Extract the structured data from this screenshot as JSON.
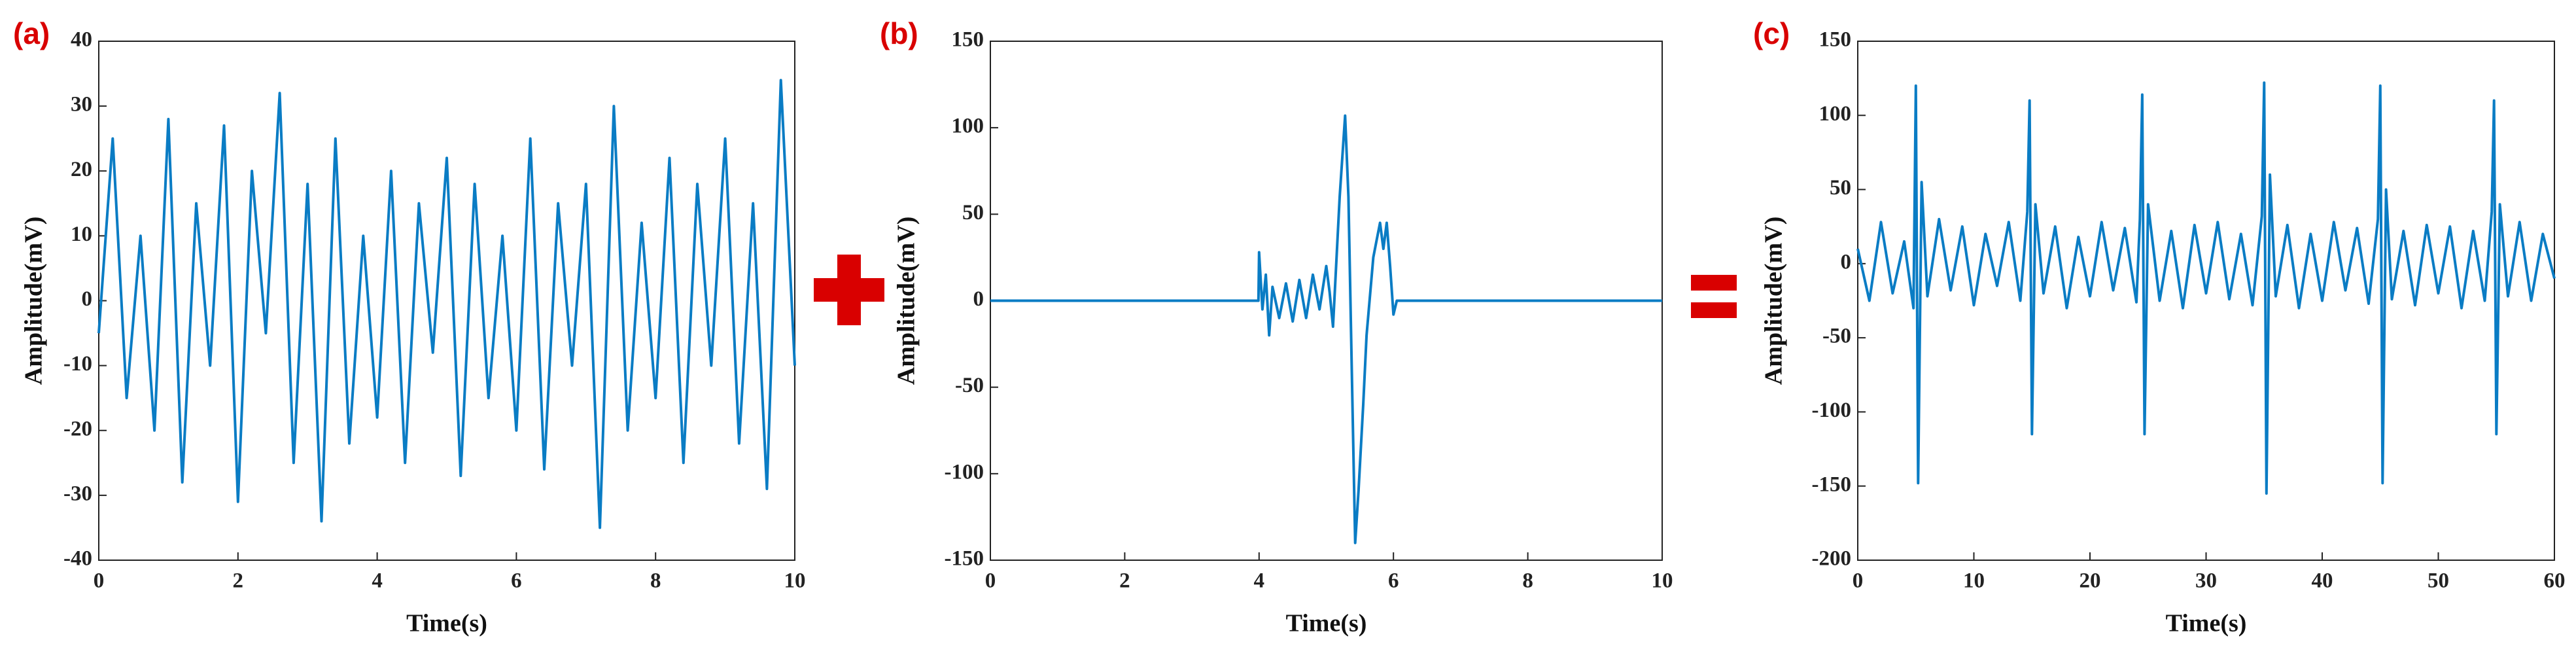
{
  "chart_data": [
    {
      "type": "line",
      "panel_label": "(a)",
      "xlabel": "Time(s)",
      "ylabel": "Amplitude(mV)",
      "xlim": [
        0,
        10
      ],
      "ylim": [
        -40,
        40
      ],
      "xticks": [
        0,
        2,
        4,
        6,
        8,
        10
      ],
      "yticks": [
        -40,
        -30,
        -20,
        -10,
        0,
        10,
        20,
        30,
        40
      ],
      "color": "#0a7cc4",
      "x": [
        0,
        0.2,
        0.4,
        0.6,
        0.8,
        1,
        1.2,
        1.4,
        1.6,
        1.8,
        2,
        2.2,
        2.4,
        2.6,
        2.8,
        3,
        3.2,
        3.4,
        3.6,
        3.8,
        4,
        4.2,
        4.4,
        4.6,
        4.8,
        5,
        5.2,
        5.4,
        5.6,
        5.8,
        6,
        6.2,
        6.4,
        6.6,
        6.8,
        7,
        7.2,
        7.4,
        7.6,
        7.8,
        8,
        8.2,
        8.4,
        8.6,
        8.8,
        9,
        9.2,
        9.4,
        9.6,
        9.8,
        10
      ],
      "values": [
        -5,
        25,
        -15,
        10,
        -20,
        28,
        -28,
        15,
        -10,
        27,
        -31,
        20,
        -5,
        32,
        -25,
        18,
        -34,
        25,
        -22,
        10,
        -18,
        20,
        -25,
        15,
        -8,
        22,
        -27,
        18,
        -15,
        10,
        -20,
        25,
        -26,
        15,
        -10,
        18,
        -35,
        30,
        -20,
        12,
        -15,
        22,
        -25,
        18,
        -10,
        25,
        -22,
        15,
        -29,
        34,
        -10
      ]
    },
    {
      "type": "line",
      "panel_label": "(b)",
      "xlabel": "Time(s)",
      "ylabel": "Amplitude(mV)",
      "xlim": [
        0,
        10
      ],
      "ylim": [
        -150,
        150
      ],
      "xticks": [
        0,
        2,
        4,
        6,
        8,
        10
      ],
      "yticks": [
        -150,
        -100,
        -50,
        0,
        50,
        100,
        150
      ],
      "color": "#0a7cc4",
      "x": [
        0,
        3.99,
        4,
        4.05,
        4.1,
        4.15,
        4.2,
        4.3,
        4.4,
        4.5,
        4.6,
        4.7,
        4.8,
        4.9,
        5,
        5.05,
        5.1,
        5.2,
        5.28,
        5.33,
        5.38,
        5.43,
        5.48,
        5.55,
        5.6,
        5.7,
        5.75,
        5.8,
        5.85,
        5.9,
        5.95,
        6,
        6.05,
        10
      ],
      "values": [
        0,
        0,
        28,
        -5,
        15,
        -20,
        8,
        -10,
        10,
        -12,
        12,
        -10,
        15,
        -5,
        20,
        5,
        -15,
        60,
        107,
        60,
        -40,
        -140,
        -110,
        -60,
        -20,
        25,
        35,
        45,
        30,
        45,
        20,
        -8,
        0,
        0
      ]
    },
    {
      "type": "line",
      "panel_label": "(c)",
      "xlabel": "Time(s)",
      "ylabel": "Amplitude(mV)",
      "xlim": [
        0,
        60
      ],
      "ylim": [
        -200,
        150
      ],
      "xticks": [
        0,
        10,
        20,
        30,
        40,
        50,
        60
      ],
      "yticks": [
        -200,
        -150,
        -100,
        -50,
        0,
        50,
        100,
        150
      ],
      "color": "#0a7cc4",
      "x": [
        0,
        1,
        2,
        3,
        4,
        4.8,
        5,
        5.2,
        5.5,
        6,
        7,
        8,
        9,
        10,
        11,
        12,
        13,
        14,
        14.6,
        14.8,
        15,
        15.3,
        16,
        17,
        18,
        19,
        20,
        21,
        22,
        23,
        24,
        24.3,
        24.5,
        24.7,
        25,
        26,
        27,
        28,
        29,
        30,
        31,
        32,
        33,
        34,
        34.8,
        35,
        35.2,
        35.5,
        36,
        37,
        38,
        39,
        40,
        41,
        42,
        43,
        44,
        44.8,
        45,
        45.2,
        45.5,
        46,
        47,
        48,
        49,
        50,
        51,
        52,
        53,
        54,
        54.6,
        54.8,
        55,
        55.3,
        56,
        57,
        58,
        59,
        60
      ],
      "values": [
        10,
        -25,
        28,
        -20,
        15,
        -30,
        120,
        -148,
        55,
        -22,
        30,
        -18,
        25,
        -28,
        20,
        -15,
        28,
        -25,
        35,
        110,
        -115,
        40,
        -20,
        25,
        -30,
        18,
        -22,
        28,
        -18,
        24,
        -26,
        30,
        114,
        -115,
        40,
        -25,
        22,
        -30,
        26,
        -20,
        28,
        -24,
        20,
        -28,
        32,
        122,
        -155,
        60,
        -22,
        26,
        -30,
        20,
        -25,
        28,
        -18,
        24,
        -27,
        30,
        120,
        -148,
        50,
        -24,
        22,
        -28,
        26,
        -20,
        25,
        -30,
        22,
        -25,
        35,
        110,
        -115,
        40,
        -22,
        28,
        -25,
        20,
        -10
      ]
    }
  ]
}
